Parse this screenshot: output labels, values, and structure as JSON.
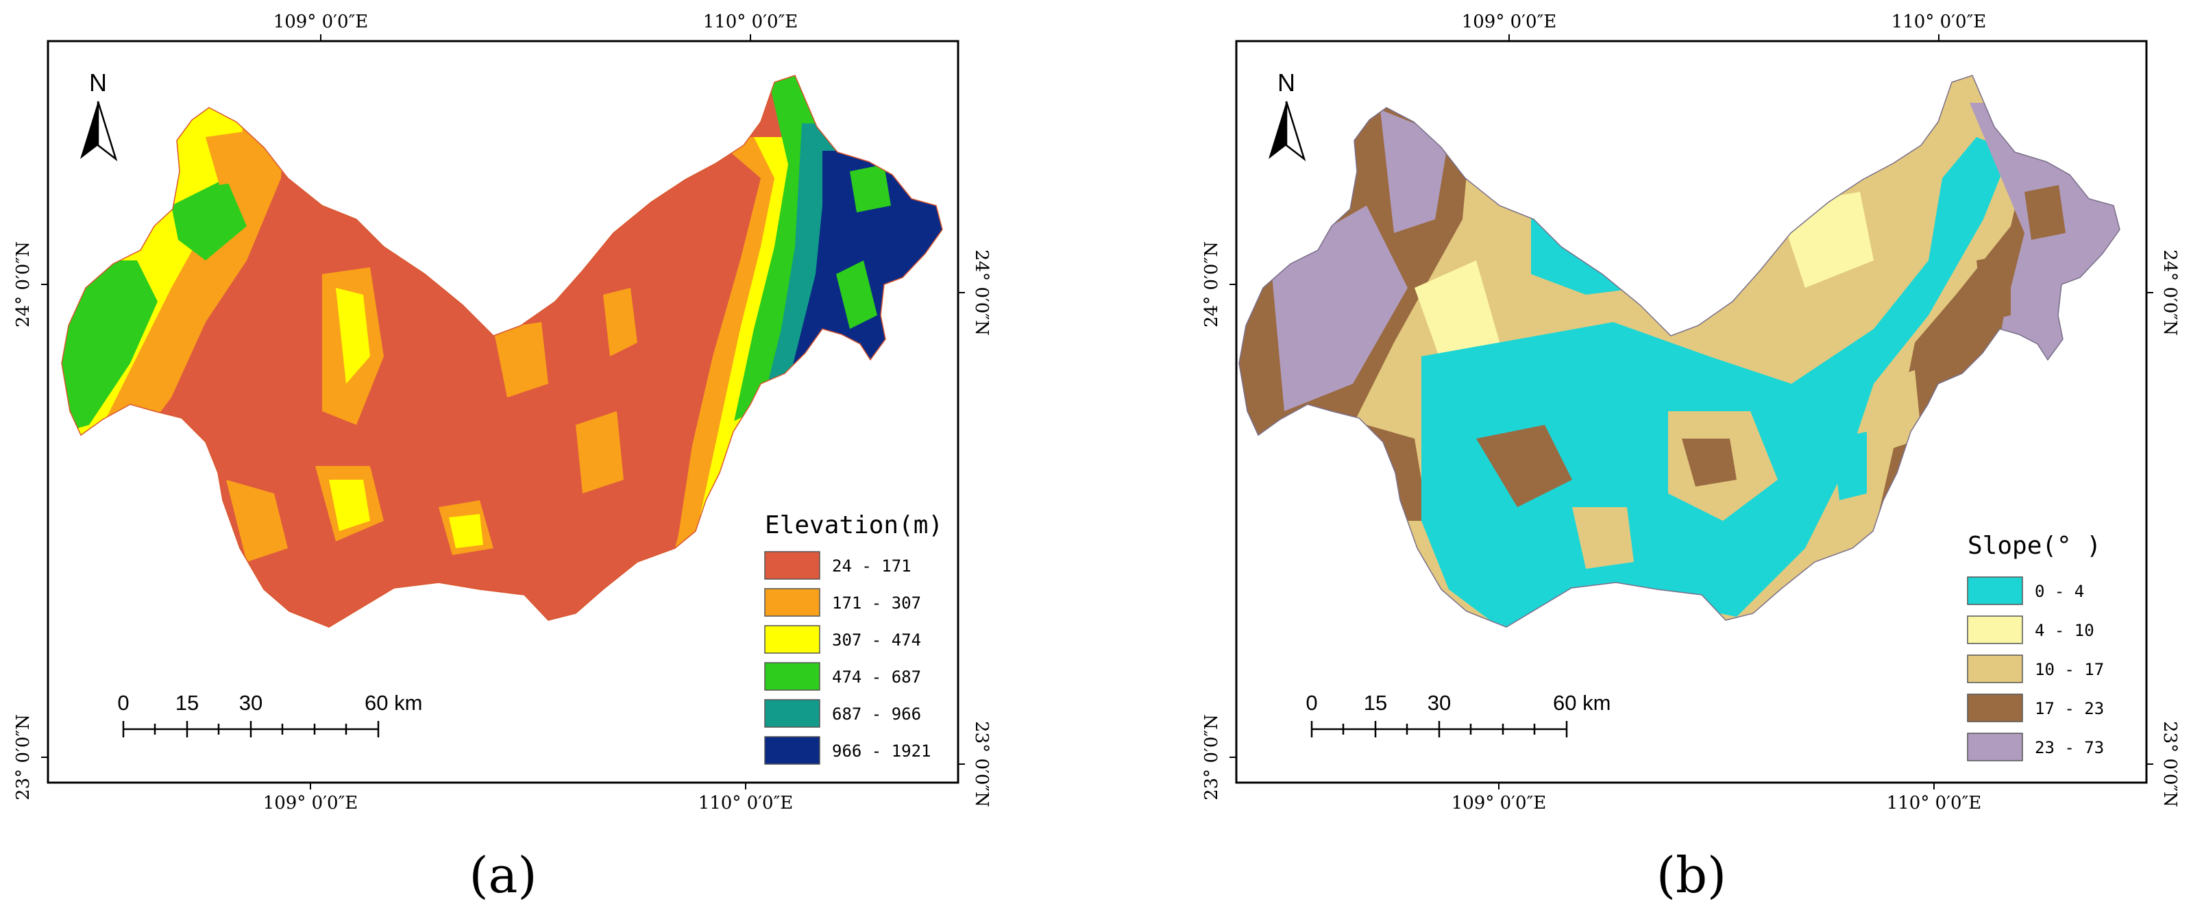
{
  "panels": [
    {
      "id": "a",
      "label": "(a)",
      "north": "N",
      "lon_labels": [
        "109° 0′0″E",
        "110° 0′0″E"
      ],
      "lat_labels": [
        "24° 0′0″N",
        "23° 0′0″N"
      ],
      "scale": {
        "ticks": [
          "0",
          "15",
          "30",
          "60 km"
        ]
      },
      "legend": {
        "title": "Elevation(m)",
        "classes": [
          {
            "label": "24 - 171",
            "color": "#dd5a3e"
          },
          {
            "label": "171 - 307",
            "color": "#f9a11b"
          },
          {
            "label": "307 - 474",
            "color": "#ffff00"
          },
          {
            "label": "474 - 687",
            "color": "#2ecc1c"
          },
          {
            "label": "687 - 966",
            "color": "#129b8a"
          },
          {
            "label": "966 - 1921",
            "color": "#0b2a86"
          }
        ]
      }
    },
    {
      "id": "b",
      "label": "(b)",
      "north": "N",
      "lon_labels": [
        "109° 0′0″E",
        "110° 0′0″E"
      ],
      "lat_labels": [
        "24° 0′0″N",
        "23° 0′0″N"
      ],
      "scale": {
        "ticks": [
          "0",
          "15",
          "30",
          "60 km"
        ]
      },
      "legend": {
        "title": "Slope(° )",
        "classes": [
          {
            "label": "0 - 4",
            "color": "#1dd5d5"
          },
          {
            "label": "4 - 10",
            "color": "#fbf7a6"
          },
          {
            "label": "10 - 17",
            "color": "#e3c97f"
          },
          {
            "label": "17 - 23",
            "color": "#9a6a41"
          },
          {
            "label": "23 - 73",
            "color": "#b09cbf"
          }
        ]
      }
    }
  ]
}
